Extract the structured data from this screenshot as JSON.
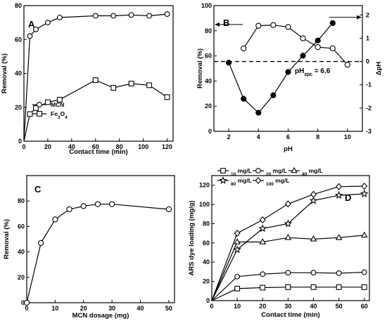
{
  "chart_data": [
    {
      "panel": "A",
      "type": "line",
      "xlabel": "Contact time (min)",
      "ylabel": "Removal (%)",
      "xlim": [
        0,
        125
      ],
      "ylim": [
        0,
        80
      ],
      "xticks": [
        0,
        20,
        40,
        60,
        80,
        100,
        120
      ],
      "yticks": [
        0,
        20,
        40,
        60,
        80
      ],
      "legend_position": "lower-left",
      "series": [
        {
          "name": "MCN",
          "marker": "circle",
          "x": [
            0,
            5,
            10,
            20,
            30,
            60,
            75,
            90,
            105,
            120
          ],
          "y": [
            0,
            62,
            66,
            70,
            73,
            74,
            74,
            74.5,
            74,
            75
          ]
        },
        {
          "name": "Fe3O4",
          "marker": "square",
          "x": [
            0,
            5,
            10,
            20,
            30,
            60,
            75,
            90,
            105,
            120
          ],
          "y": [
            0,
            16,
            19.5,
            23,
            24.5,
            36,
            31.5,
            34,
            33,
            26
          ]
        }
      ]
    },
    {
      "panel": "B",
      "type": "line",
      "xlabel": "pH",
      "ylabel": "Removal (%)",
      "y2label": "ΔpH",
      "xlim": [
        1,
        11
      ],
      "ylim": [
        0,
        100
      ],
      "y2lim": [
        -3,
        2.4
      ],
      "xticks": [
        2,
        4,
        6,
        8,
        10
      ],
      "yticks": [
        0,
        20,
        40,
        60,
        80,
        100
      ],
      "y2ticks": [
        -3,
        -2,
        -1,
        0,
        1,
        2
      ],
      "annotation": {
        "text": "pH",
        "sub": "zpc",
        "rest": " = 6.6"
      },
      "series": [
        {
          "axis": "left",
          "marker": "open-circle",
          "x": [
            3,
            4,
            5,
            6,
            7,
            8,
            9,
            10
          ],
          "y": [
            66,
            84,
            84.5,
            83,
            74,
            67,
            66,
            53
          ]
        },
        {
          "axis": "right",
          "marker": "filled-circle",
          "x": [
            2,
            3,
            4,
            5,
            6,
            7,
            8,
            9
          ],
          "y": [
            -0.05,
            -1.6,
            -2.2,
            -1.45,
            -0.45,
            0.25,
            0.9,
            1.65
          ]
        }
      ],
      "reference_lines": [
        {
          "axis": "right",
          "y": 0,
          "style": "dashed"
        }
      ]
    },
    {
      "panel": "C",
      "type": "line",
      "xlabel": "MCN dosage (mg)",
      "ylabel": "Removal (%)",
      "xlim": [
        0,
        52
      ],
      "ylim": [
        0,
        100
      ],
      "xticks": [
        0,
        10,
        20,
        30,
        40,
        50
      ],
      "yticks": [
        0,
        20,
        40,
        60,
        80
      ],
      "series": [
        {
          "marker": "circle",
          "x": [
            0,
            5,
            10,
            15,
            20,
            25,
            30,
            50
          ],
          "y": [
            0,
            47,
            65.5,
            73.5,
            76,
            77.5,
            77.5,
            73.5
          ]
        }
      ]
    },
    {
      "panel": "D",
      "type": "line",
      "xlabel": "Contact time (min)",
      "ylabel": "ARS dye loading (mg/g)",
      "xlim": [
        0,
        62
      ],
      "ylim": [
        0,
        130
      ],
      "xticks": [
        0,
        10,
        20,
        30,
        40,
        50,
        60
      ],
      "yticks": [
        0,
        20,
        40,
        60,
        80,
        100,
        120
      ],
      "legend_position": "top",
      "series": [
        {
          "name": "10 mg/L",
          "marker": "square",
          "x": [
            0,
            10,
            20,
            30,
            40,
            50,
            60
          ],
          "y": [
            0,
            12.5,
            13.5,
            14,
            14,
            14,
            14
          ]
        },
        {
          "name": "20 mg/L",
          "marker": "circle",
          "x": [
            0,
            10,
            20,
            30,
            40,
            50,
            60
          ],
          "y": [
            0,
            25,
            27.5,
            29,
            29,
            28.5,
            29.5
          ]
        },
        {
          "name": "40 mg/L",
          "marker": "triangle",
          "x": [
            0,
            10,
            20,
            30,
            40,
            50,
            60
          ],
          "y": [
            0,
            61,
            61,
            65.5,
            64,
            65.5,
            68
          ]
        },
        {
          "name": "80 mg/L",
          "marker": "star",
          "x": [
            0,
            10,
            20,
            30,
            40,
            50,
            60
          ],
          "y": [
            0,
            53,
            75,
            80,
            104,
            109.5,
            111
          ]
        },
        {
          "name": "100 mg/L",
          "marker": "diamond",
          "x": [
            0,
            10,
            20,
            30,
            40,
            50,
            60
          ],
          "y": [
            0,
            70,
            84,
            100.5,
            110.5,
            118.5,
            119
          ]
        }
      ]
    }
  ]
}
